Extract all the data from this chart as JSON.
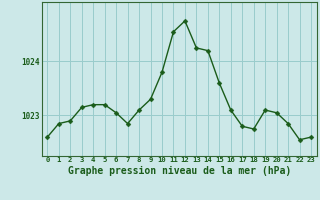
{
  "x": [
    0,
    1,
    2,
    3,
    4,
    5,
    6,
    7,
    8,
    9,
    10,
    11,
    12,
    13,
    14,
    15,
    16,
    17,
    18,
    19,
    20,
    21,
    22,
    23
  ],
  "y": [
    1022.6,
    1022.85,
    1022.9,
    1023.15,
    1023.2,
    1023.2,
    1023.05,
    1022.85,
    1023.1,
    1023.3,
    1023.8,
    1024.55,
    1024.75,
    1024.25,
    1024.2,
    1023.6,
    1023.1,
    1022.8,
    1022.75,
    1023.1,
    1023.05,
    1022.85,
    1022.55,
    1022.6
  ],
  "line_color": "#1a5c1a",
  "marker": "D",
  "marker_size": 2.5,
  "background_color": "#cce8e8",
  "grid_color": "#99cccc",
  "xlabel": "Graphe pression niveau de la mer (hPa)",
  "xlabel_fontsize": 7,
  "ylabel_ticks": [
    1023,
    1024
  ],
  "ylim": [
    1022.25,
    1025.1
  ],
  "xlim": [
    -0.5,
    23.5
  ],
  "tick_label_color": "#1a5c1a",
  "axis_color": "#336633",
  "bottom_bar_color": "#336633"
}
